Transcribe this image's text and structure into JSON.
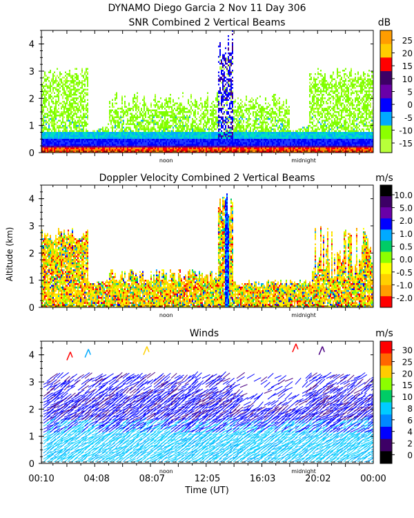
{
  "figure": {
    "title_line1": "DYNAMO Diego Garcia   2 Nov 11 Day 306",
    "shared_ylabel": "Altitude (km)",
    "shared_xlabel": "Time (UT)",
    "time_ticks": [
      "00:10",
      "04:08",
      "08:07",
      "12:05",
      "16:03",
      "20:02",
      "00:00"
    ],
    "day_marks": [
      "noon",
      "midnight"
    ]
  },
  "colors": {
    "snr_scale": [
      "#ff0000",
      "#4b0082",
      "#0000ff",
      "#00bfff",
      "#7fff00"
    ],
    "velocity_scale": [
      "#ff0000",
      "#ff8c00",
      "#ffd700",
      "#ffff00",
      "#7fff00",
      "#00ced1",
      "#0000ff",
      "#4b0082"
    ],
    "wind_scale": [
      "#000000",
      "#4b0082",
      "#0000ff",
      "#1e90ff",
      "#00bfff",
      "#00ced1",
      "#7fff00",
      "#ffd700",
      "#ff8c00",
      "#ff0000"
    ]
  },
  "chart_data": [
    {
      "type": "heatmap",
      "title": "SNR Combined 2 Vertical Beams",
      "xlabel": "",
      "ylabel": "",
      "xlim": [
        0.17,
        24.0
      ],
      "ylim": [
        0,
        4.5
      ],
      "yticks": [
        "0",
        "1",
        "2",
        "3",
        "4"
      ],
      "colorbar": {
        "unit": "dB",
        "labels": [
          "25",
          "20",
          "15",
          "10",
          "5",
          "0",
          "-5",
          "-10",
          "-15"
        ],
        "colors": [
          "#ff9d00",
          "#ffcc00",
          "#ff0000",
          "#3d0066",
          "#6a00a8",
          "#0000ff",
          "#00aaff",
          "#8cff00",
          "#b8ff3a"
        ]
      },
      "features": [
        {
          "x": [
            0.17,
            24.0
          ],
          "y": [
            0.0,
            0.6
          ],
          "level": "high"
        },
        {
          "x": [
            0.17,
            24.0
          ],
          "y": [
            0.6,
            2.0
          ],
          "level": "low"
        },
        {
          "x": [
            13.3,
            13.7
          ],
          "y": [
            0.0,
            4.5
          ],
          "level": "high"
        }
      ]
    },
    {
      "type": "heatmap",
      "title": "Doppler Velocity Combined 2 Vertical Beams",
      "xlabel": "",
      "ylabel": "Altitude (km)",
      "xlim": [
        0.17,
        24.0
      ],
      "ylim": [
        0,
        4.5
      ],
      "yticks": [
        "0",
        "1",
        "2",
        "3",
        "4"
      ],
      "colorbar": {
        "unit": "m/s",
        "labels": [
          "10.0",
          "5.0",
          "2.0",
          "1.0",
          "0.5",
          "0.0",
          "-0.5",
          "-1.0",
          "-2.0"
        ],
        "colors": [
          "#000000",
          "#3d0066",
          "#6a00a8",
          "#0000ff",
          "#00aaff",
          "#00cc66",
          "#8cff00",
          "#ffff00",
          "#ffd000",
          "#ff9d00",
          "#ff0000"
        ]
      },
      "features": [
        {
          "x": [
            0.17,
            24.0
          ],
          "y": [
            0.0,
            1.0
          ],
          "level": "near-zero"
        },
        {
          "x": [
            13.3,
            13.7
          ],
          "y": [
            0.0,
            4.2
          ],
          "level": "positive"
        }
      ]
    },
    {
      "type": "scatter",
      "title": "Winds",
      "xlabel": "Time (UT)",
      "ylabel": "",
      "xlim": [
        0.17,
        24.0
      ],
      "ylim": [
        0,
        4.5
      ],
      "yticks": [
        "0",
        "1",
        "2",
        "3",
        "4"
      ],
      "xticks": [
        "00:10",
        "04:08",
        "08:07",
        "12:05",
        "16:03",
        "20:02",
        "00:00"
      ],
      "colorbar": {
        "unit": "m/s",
        "labels": [
          "30",
          "25",
          "20",
          "15",
          "10",
          "8",
          "6",
          "4",
          "2",
          "0"
        ],
        "colors": [
          "#ff0000",
          "#ff6600",
          "#ffcc00",
          "#8cff00",
          "#00cc66",
          "#00ccff",
          "#0088ff",
          "#0000ff",
          "#3d0066",
          "#000000"
        ]
      },
      "speed_bands": [
        {
          "altitude_km": [
            0.0,
            1.5
          ],
          "speed_ms": "8-10"
        },
        {
          "altitude_km": [
            1.0,
            3.2
          ],
          "speed_ms": "2-4"
        },
        {
          "altitude_km": [
            3.5,
            4.2
          ],
          "speed_ms": "20-30"
        }
      ]
    }
  ]
}
